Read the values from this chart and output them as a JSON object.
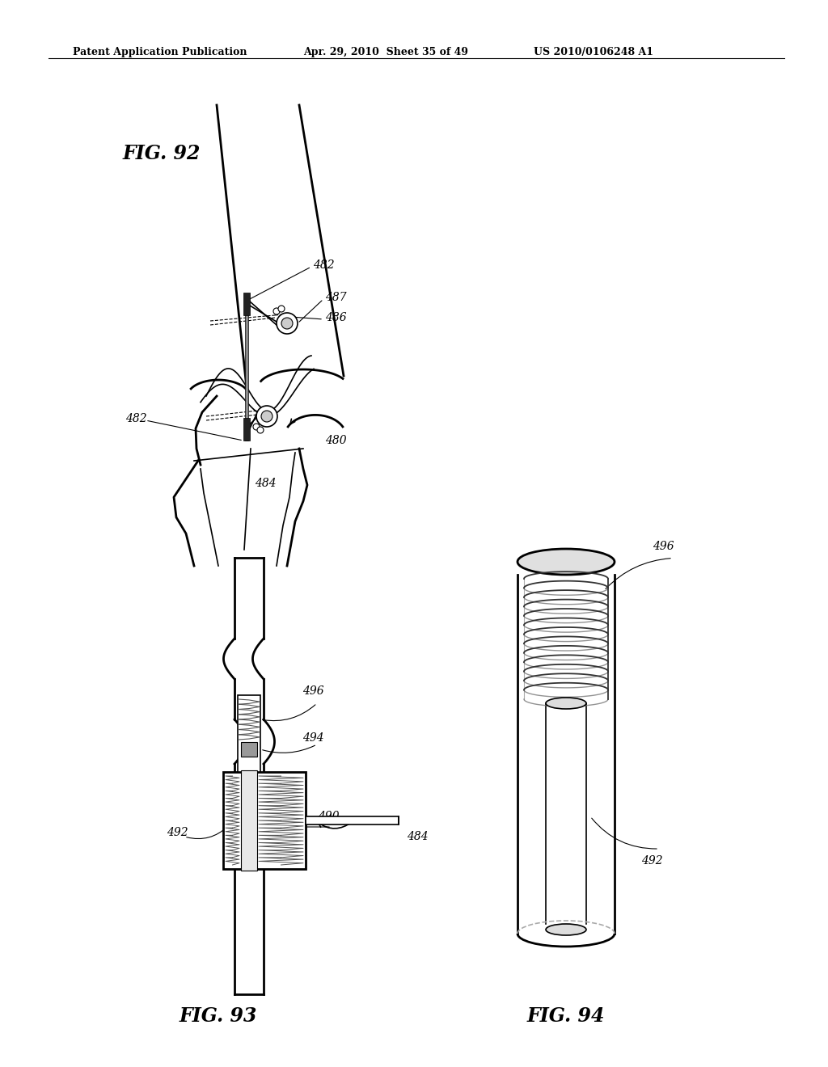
{
  "bg_color": "#ffffff",
  "header_text": "Patent Application Publication",
  "header_date": "Apr. 29, 2010  Sheet 35 of 49",
  "header_patent": "US 2010/0106248 A1",
  "fig92_label": "FIG. 92",
  "fig93_label": "FIG. 93",
  "fig94_label": "FIG. 94"
}
